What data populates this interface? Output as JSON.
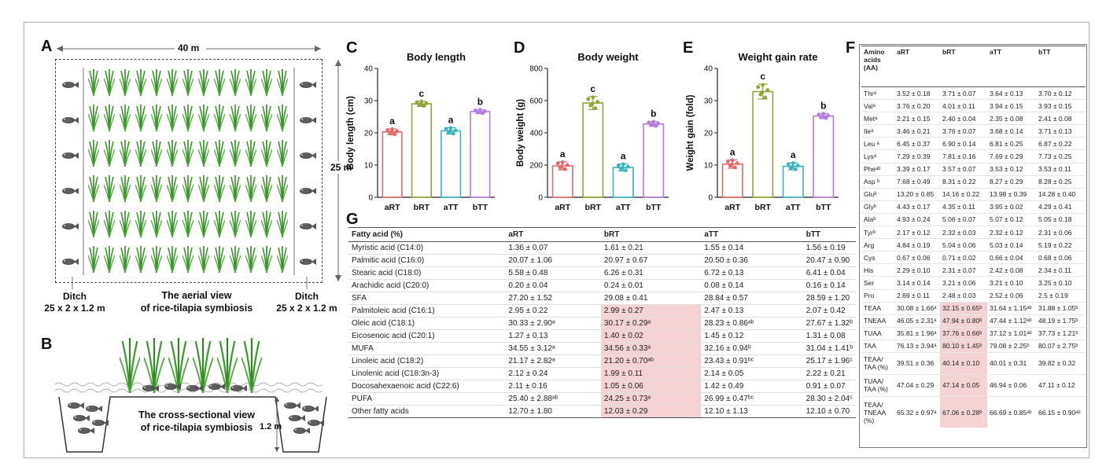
{
  "panels": {
    "A": {
      "letter": "A",
      "width_label": "40 m",
      "height_label": "25 m",
      "ditch_left": "Ditch\n25 x 2 x 1.2 m",
      "ditch_right": "Ditch\n25 x 2 x 1.2 m",
      "caption": "The aerial view\nof rice-tilapia symbiosis"
    },
    "B": {
      "letter": "B",
      "caption": "The cross-sectional view\nof rice-tilapia symbiosis",
      "depth_label": "1.2 m"
    },
    "C": {
      "letter": "C"
    },
    "D": {
      "letter": "D"
    },
    "E": {
      "letter": "E"
    },
    "F": {
      "letter": "F"
    },
    "G": {
      "letter": "G"
    }
  },
  "chart_data": [
    {
      "type": "bar",
      "title": "Body length",
      "ylabel": "Body length (cm)",
      "xlabel": "",
      "categories": [
        "aRT",
        "bRT",
        "aTT",
        "bTT"
      ],
      "values": [
        20.3,
        29.0,
        20.6,
        26.6
      ],
      "errors": [
        0.9,
        0.8,
        1.0,
        0.6
      ],
      "sig_letters": [
        "a",
        "c",
        "a",
        "b"
      ],
      "colors": [
        "#e46a6a",
        "#93a532",
        "#3bb3c3",
        "#b57de0"
      ],
      "ylim": [
        0,
        40
      ],
      "yticks": [
        0,
        10,
        20,
        30,
        40
      ]
    },
    {
      "type": "bar",
      "title": "Body weight",
      "ylabel": "Body weight (g)",
      "xlabel": "",
      "categories": [
        "aRT",
        "bRT",
        "aTT",
        "bTT"
      ],
      "values": [
        195,
        585,
        185,
        455
      ],
      "errors": [
        25,
        40,
        22,
        15
      ],
      "sig_letters": [
        "a",
        "c",
        "a",
        "b"
      ],
      "colors": [
        "#e46a6a",
        "#93a532",
        "#3bb3c3",
        "#b57de0"
      ],
      "ylim": [
        0,
        800
      ],
      "yticks": [
        0,
        200,
        400,
        600,
        800
      ]
    },
    {
      "type": "bar",
      "title": "Weight gain rate",
      "ylabel": "Weight gain (fold)",
      "xlabel": "",
      "categories": [
        "aRT",
        "bRT",
        "aTT",
        "bTT"
      ],
      "values": [
        10.3,
        32.8,
        9.6,
        25.2
      ],
      "errors": [
        1.3,
        2.3,
        1.1,
        0.8
      ],
      "sig_letters": [
        "a",
        "c",
        "a",
        "b"
      ],
      "colors": [
        "#e46a6a",
        "#93a532",
        "#3bb3c3",
        "#b57de0"
      ],
      "ylim": [
        0,
        40
      ],
      "yticks": [
        0,
        10,
        20,
        30,
        40
      ]
    }
  ],
  "fatty_table": {
    "headers": [
      "Fatty acid (%)",
      "aRT",
      "bRT",
      "aTT",
      "bTT"
    ],
    "rows": [
      {
        "name": "Myristic acid (C14:0)",
        "aRT": "1.36 ± 0.07",
        "bRT": "1.61 ± 0.21",
        "aTT": "1.55 ± 0.14",
        "bTT": "1.56 ± 0.19"
      },
      {
        "name": "Palmitic acid (C16:0)",
        "aRT": "20.07 ± 1.06",
        "bRT": "20.97 ± 0.67",
        "aTT": "20.50 ± 0.36",
        "bTT": "20.47 ± 0.90"
      },
      {
        "name": "Stearic acid (C18:0)",
        "aRT": "5.58 ± 0.48",
        "bRT": "6.26 ± 0.31",
        "aTT": "6.72 ± 0.13",
        "bTT": "6.41 ± 0.04"
      },
      {
        "name": "Arachidic acid (C20:0)",
        "aRT": "0.20 ± 0.04",
        "bRT": "0.24 ± 0.01",
        "aTT": "0.08 ± 0.14",
        "bTT": "0.16 ± 0.14"
      },
      {
        "name": "SFA",
        "aRT": "27.20 ± 1.52",
        "bRT": "29.08 ± 0.41",
        "aTT": "28.84 ± 0.57",
        "bTT": "28.59 ± 1.20"
      },
      {
        "name": "Palmitoleic acid (C16:1)",
        "aRT": "2.95 ± 0.22",
        "bRT": "2.99 ± 0.27",
        "aTT": "2.47 ± 0.13",
        "bTT": "2.07 ± 0.42",
        "hl": true
      },
      {
        "name": "Oleic acid (C18:1)",
        "aRT": "30.33 ± 2.90ᵃ",
        "bRT": "30.17 ± 0.29ᵃ",
        "aTT": "28.23 ± 0.86ᵃᵇ",
        "bTT": "27.67 ± 1.32ᵇ",
        "hl": true
      },
      {
        "name": "Eicosenoic acid (C20:1)",
        "aRT": "1.27 ± 0.13",
        "bRT": "1.40 ± 0.02",
        "aTT": "1.45 ± 0.12",
        "bTT": "1.31 ± 0.08",
        "hl": true
      },
      {
        "name": "MUFA",
        "aRT": "34.55 ± 3.12ᵃ",
        "bRT": "34.56 ± 0.33ᵃ",
        "aTT": "32.16 ± 0.94ᵇ",
        "bTT": "31.04 ± 1.41ᵇ",
        "hl": true
      },
      {
        "name": "Linoleic acid (C18:2)",
        "aRT": "21.17 ± 2.82ᵃ",
        "bRT": "21.20 ± 0.70ᵃᵇ",
        "aTT": "23.43 ± 0.91ᵇᶜ",
        "bTT": "25.17 ± 1.96ᶜ",
        "hl": true
      },
      {
        "name": "Linolenic acid (C18:3n-3)",
        "aRT": "2.12 ± 0.24",
        "bRT": "1.99 ± 0.11",
        "aTT": "2.14 ± 0.05",
        "bTT": "2.22 ± 0.21",
        "hl": true
      },
      {
        "name": "Docosahexaenoic acid (C22:6)",
        "aRT": "2.11 ± 0.16",
        "bRT": "1.05 ± 0.06",
        "aTT": "1.42 ± 0.49",
        "bTT": "0.91 ± 0.07",
        "hl": true
      },
      {
        "name": "PUFA",
        "aRT": "25.40 ± 2.88ᵃᵇ",
        "bRT": "24.25 ± 0.73ᵃ",
        "aTT": "26.99 ± 0.47ᵇᶜ",
        "bTT": "28.30 ± 2.04ᶜ",
        "hl": true
      },
      {
        "name": "Other fatty acids",
        "aRT": "12.70 ± 1.80",
        "bRT": "12.03 ± 0.29",
        "aTT": "12.10 ± 1.13",
        "bTT": "12.10 ± 0.70",
        "hl": true
      }
    ]
  },
  "amino_table": {
    "headers": [
      "Amino acids (AA)",
      "aRT",
      "bRT",
      "aTT",
      "bTT"
    ],
    "rows": [
      {
        "name": "Thrᵃ",
        "v": [
          "3.52 ± 0.18",
          "3.71 ± 0.07",
          "3.64 ± 0.13",
          "3.70 ± 0.12"
        ]
      },
      {
        "name": "Valᵃ",
        "v": [
          "3.76 ± 0.20",
          "4.01 ± 0.11",
          "3.94 ± 0.15",
          "3.93 ± 0.15"
        ]
      },
      {
        "name": "Metᵃ",
        "v": [
          "2.21 ± 0.15",
          "2.40 ± 0.04",
          "2.35 ± 0.08",
          "2.41 ± 0.08"
        ]
      },
      {
        "name": "Ileᵃ",
        "v": [
          "3.46 ± 0.21",
          "3.76 ± 0.07",
          "3.68 ± 0.14",
          "3.71 ± 0.13"
        ]
      },
      {
        "name": "Leu ᵃ",
        "v": [
          "6.45 ± 0.37",
          "6.90 ± 0.14",
          "6.81 ± 0.25",
          "6.87 ± 0.22"
        ]
      },
      {
        "name": "Lysᵃ",
        "v": [
          "7.29 ± 0.39",
          "7.81 ± 0.16",
          "7.69 ± 0.29",
          "7.73 ± 0.25"
        ]
      },
      {
        "name": "Pheᵃᵇ",
        "v": [
          "3.39 ± 0.17",
          "3.57 ± 0.07",
          "3.53 ± 0.12",
          "3.53 ± 0.11"
        ]
      },
      {
        "name": "Asp ᵇ",
        "v": [
          "7.68 ± 0.49",
          "8.31 ± 0.22",
          "8.27 ± 0.29",
          "8.28 ± 0.25"
        ]
      },
      {
        "name": "Gluᵇ",
        "v": [
          "13.20 ± 0.85",
          "14.16 ± 0.22",
          "13.98 ± 0.39",
          "14.28 ± 0.40"
        ]
      },
      {
        "name": "Glyᵇ",
        "v": [
          "4.43 ± 0.17",
          "4.35 ± 0.11",
          "3.95 ± 0.02",
          "4.29 ± 0.41"
        ]
      },
      {
        "name": "Alaᵇ",
        "v": [
          "4.93 ± 0.24",
          "5.06 ± 0.07",
          "5.07 ± 0.12",
          "5.05 ± 0.18"
        ]
      },
      {
        "name": "Tyrᵇ",
        "v": [
          "2.17 ± 0.12",
          "2.32 ± 0.03",
          "2.32 ± 0.12",
          "2.31 ± 0.06"
        ]
      },
      {
        "name": "Arg",
        "v": [
          "4.84 ± 0.19",
          "5.04 ± 0.06",
          "5.03 ± 0.14",
          "5.19 ± 0.22"
        ]
      },
      {
        "name": "Cys",
        "v": [
          "0.67 ± 0.06",
          "0.71 ± 0.02",
          "0.66 ± 0.04",
          "0.68 ± 0.06"
        ]
      },
      {
        "name": "His",
        "v": [
          "2.29 ± 0.10",
          "2.31 ± 0.07",
          "2.42 ± 0.08",
          "2.34 ± 0.11"
        ]
      },
      {
        "name": "Ser",
        "v": [
          "3.14 ± 0.14",
          "3.21 ± 0.06",
          "3.21 ± 0.10",
          "3.25 ± 0.10"
        ]
      },
      {
        "name": "Pro",
        "v": [
          "2.69 ± 0.11",
          "2.48 ± 0.03",
          "2.52 ± 0.06",
          "2.5 ± 0.19"
        ]
      },
      {
        "name": "TEAA",
        "v": [
          "30.08 ± 1.66ᵃ",
          "32.15 ± 0.65ᵇ",
          "31.64 ± 1.15ᵃᵇ",
          "31.88 ± 1.05ᵇ"
        ],
        "hl": true
      },
      {
        "name": "TNEAA",
        "v": [
          "46.05 ± 2.31ᵃ",
          "47.94 ± 0.80ᵇ",
          "47.44 ± 1.12ᵃᵇ",
          "48.19 ± 1.75ᵇ"
        ],
        "hl": true
      },
      {
        "name": "TUAA",
        "v": [
          "35.81 ± 1.96ᵃ",
          "37.76 ± 0.66ᵇ",
          "37.12 ± 1.01ᵃᵇ",
          "37.73 ± 1.21ᵇ"
        ],
        "hl": true
      },
      {
        "name": "TAA",
        "v": [
          "76.13 ± 3.94ᵃ",
          "80.10 ± 1.45ᵇ",
          "79.08 ± 2.25ᵇ",
          "80.07 ± 2.75ᵇ"
        ],
        "hl": true
      },
      {
        "name": "TEAA/ TAA (%)",
        "v": [
          "39.51 ± 0.36",
          "40.14 ± 0.10",
          "40.01 ± 0.31",
          "39.82 ± 0.32"
        ],
        "hl": true,
        "tall": true
      },
      {
        "name": "TUAA/ TAA (%)",
        "v": [
          "47.04 ± 0.29",
          "47.14 ± 0.05",
          "46.94 ± 0.06",
          "47.11 ± 0.12"
        ],
        "hl": true,
        "tall": true
      },
      {
        "name": "TEAA/ TNEAA (%)",
        "v": [
          "65.32 ± 0.97ᵃ",
          "67.06 ± 0.28ᵇ",
          "66.69 ± 0.85ᵃᵇ",
          "66.15 ± 0.90ᵃᵇ"
        ],
        "hl": true,
        "taller": true
      }
    ]
  }
}
